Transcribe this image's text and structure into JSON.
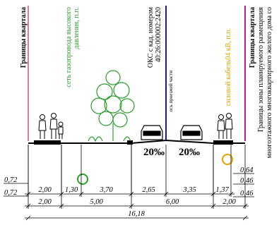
{
  "labels": {
    "left_boundary": "Границы квартала",
    "gas_1": "сеть газопровода высокого",
    "gas_2": "давления, п.п.",
    "oks_1": "ОКС с кад. номером",
    "oks_2": "40:26:000002:2420",
    "axis": "ось проезжей части",
    "cable": "силовой кабель04 кВ, п.п.",
    "right_boundary": "Границы квартала",
    "zone_1": "Границы зоны планируемого размещения",
    "zone_2": "многоэтажного многоквартирного жилого дома со"
  },
  "slopes": [
    "20‰",
    "20‰"
  ],
  "dimensions": {
    "left": [
      "0,72",
      "0,72"
    ],
    "right": [
      "0,64",
      "0,46",
      "0,46"
    ],
    "row1": [
      "2,00",
      "1,30",
      "3,70",
      "2,65",
      "3,35",
      "1,37"
    ],
    "row2": [
      "2,00",
      "5,00",
      "6,00",
      "2,00"
    ],
    "total": "16,18"
  }
}
